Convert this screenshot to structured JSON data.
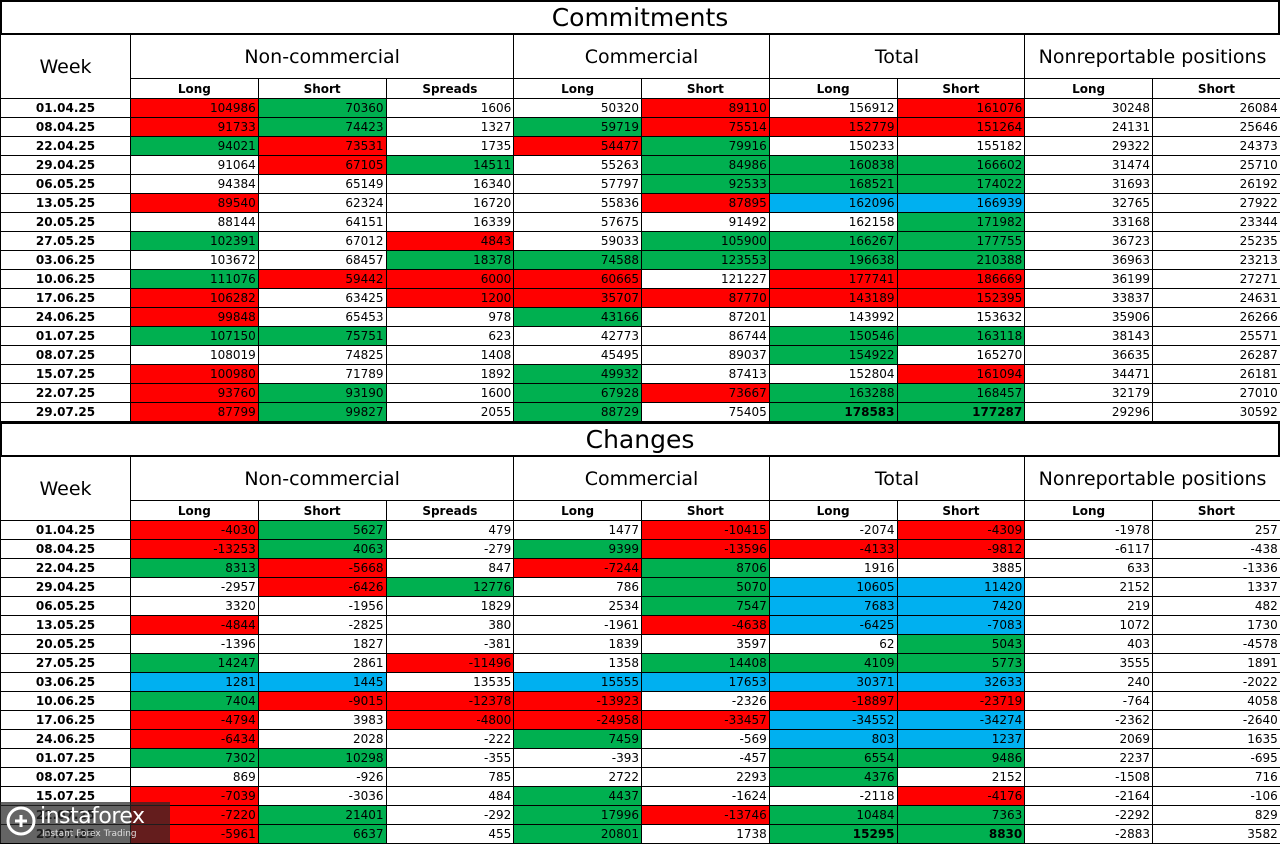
{
  "colors": {
    "red": "#ff0000",
    "green": "#00b050",
    "blue": "#00b0f0"
  },
  "headers": {
    "week": "Week",
    "groups": [
      "Non-commercial",
      "Commercial",
      "Total",
      "Nonreportable positions"
    ],
    "sub": [
      "Long",
      "Short",
      "Spreads",
      "Long",
      "Short",
      "Long",
      "Short",
      "Long",
      "Short"
    ]
  },
  "commitments": {
    "title": "Commitments",
    "rows": [
      {
        "week": "01.04.25",
        "v": [
          "104986",
          "70360",
          "1606",
          "50320",
          "89110",
          "156912",
          "161076",
          "30248",
          "26084"
        ],
        "c": [
          "r",
          "g",
          "",
          "",
          "r",
          "",
          "r",
          "",
          ""
        ]
      },
      {
        "week": "08.04.25",
        "v": [
          "91733",
          "74423",
          "1327",
          "59719",
          "75514",
          "152779",
          "151264",
          "24131",
          "25646"
        ],
        "c": [
          "r",
          "g",
          "",
          "g",
          "r",
          "r",
          "r",
          "",
          ""
        ]
      },
      {
        "week": "22.04.25",
        "v": [
          "94021",
          "73531",
          "1735",
          "54477",
          "79916",
          "150233",
          "155182",
          "29322",
          "24373"
        ],
        "c": [
          "g",
          "r",
          "",
          "r",
          "g",
          "",
          "",
          "",
          ""
        ]
      },
      {
        "week": "29.04.25",
        "v": [
          "91064",
          "67105",
          "14511",
          "55263",
          "84986",
          "160838",
          "166602",
          "31474",
          "25710"
        ],
        "c": [
          "",
          "r",
          "g",
          "",
          "g",
          "g",
          "g",
          "",
          ""
        ]
      },
      {
        "week": "06.05.25",
        "v": [
          "94384",
          "65149",
          "16340",
          "57797",
          "92533",
          "168521",
          "174022",
          "31693",
          "26192"
        ],
        "c": [
          "",
          "",
          "",
          "",
          "g",
          "g",
          "g",
          "",
          ""
        ]
      },
      {
        "week": "13.05.25",
        "v": [
          "89540",
          "62324",
          "16720",
          "55836",
          "87895",
          "162096",
          "166939",
          "32765",
          "27922"
        ],
        "c": [
          "r",
          "",
          "",
          "",
          "r",
          "b",
          "b",
          "",
          ""
        ]
      },
      {
        "week": "20.05.25",
        "v": [
          "88144",
          "64151",
          "16339",
          "57675",
          "91492",
          "162158",
          "171982",
          "33168",
          "23344"
        ],
        "c": [
          "",
          "",
          "",
          "",
          "",
          "",
          "g",
          "",
          ""
        ]
      },
      {
        "week": "27.05.25",
        "v": [
          "102391",
          "67012",
          "4843",
          "59033",
          "105900",
          "166267",
          "177755",
          "36723",
          "25235"
        ],
        "c": [
          "g",
          "",
          "r",
          "",
          "g",
          "g",
          "g",
          "",
          ""
        ]
      },
      {
        "week": "03.06.25",
        "v": [
          "103672",
          "68457",
          "18378",
          "74588",
          "123553",
          "196638",
          "210388",
          "36963",
          "23213"
        ],
        "c": [
          "",
          "",
          "g",
          "g",
          "g",
          "g",
          "g",
          "",
          ""
        ]
      },
      {
        "week": "10.06.25",
        "v": [
          "111076",
          "59442",
          "6000",
          "60665",
          "121227",
          "177741",
          "186669",
          "36199",
          "27271"
        ],
        "c": [
          "g",
          "r",
          "r",
          "r",
          "",
          "r",
          "r",
          "",
          ""
        ]
      },
      {
        "week": "17.06.25",
        "v": [
          "106282",
          "63425",
          "1200",
          "35707",
          "87770",
          "143189",
          "152395",
          "33837",
          "24631"
        ],
        "c": [
          "r",
          "",
          "r",
          "r",
          "r",
          "r",
          "r",
          "",
          ""
        ]
      },
      {
        "week": "24.06.25",
        "v": [
          "99848",
          "65453",
          "978",
          "43166",
          "87201",
          "143992",
          "153632",
          "35906",
          "26266"
        ],
        "c": [
          "r",
          "",
          "",
          "g",
          "",
          "",
          "",
          "",
          ""
        ]
      },
      {
        "week": "01.07.25",
        "v": [
          "107150",
          "75751",
          "623",
          "42773",
          "86744",
          "150546",
          "163118",
          "38143",
          "25571"
        ],
        "c": [
          "g",
          "g",
          "",
          "",
          "",
          "g",
          "g",
          "",
          ""
        ]
      },
      {
        "week": "08.07.25",
        "v": [
          "108019",
          "74825",
          "1408",
          "45495",
          "89037",
          "154922",
          "165270",
          "36635",
          "26287"
        ],
        "c": [
          "",
          "",
          "",
          "",
          "",
          "g",
          "",
          "",
          ""
        ]
      },
      {
        "week": "15.07.25",
        "v": [
          "100980",
          "71789",
          "1892",
          "49932",
          "87413",
          "152804",
          "161094",
          "34471",
          "26181"
        ],
        "c": [
          "r",
          "",
          "",
          "g",
          "",
          "",
          "r",
          "",
          ""
        ]
      },
      {
        "week": "22.07.25",
        "v": [
          "93760",
          "93190",
          "1600",
          "67928",
          "73667",
          "163288",
          "168457",
          "32179",
          "27010"
        ],
        "c": [
          "r",
          "g",
          "",
          "g",
          "r",
          "g",
          "g",
          "",
          ""
        ]
      },
      {
        "week": "29.07.25",
        "v": [
          "87799",
          "99827",
          "2055",
          "88729",
          "75405",
          "178583",
          "177287",
          "29296",
          "30592"
        ],
        "c": [
          "r",
          "g",
          "",
          "g",
          "",
          "g",
          "g",
          "",
          ""
        ],
        "bold": [
          5,
          6
        ]
      }
    ]
  },
  "changes": {
    "title": "Changes",
    "rows": [
      {
        "week": "01.04.25",
        "v": [
          "-4030",
          "5627",
          "479",
          "1477",
          "-10415",
          "-2074",
          "-4309",
          "-1978",
          "257"
        ],
        "c": [
          "r",
          "g",
          "",
          "",
          "r",
          "",
          "r",
          "",
          ""
        ]
      },
      {
        "week": "08.04.25",
        "v": [
          "-13253",
          "4063",
          "-279",
          "9399",
          "-13596",
          "-4133",
          "-9812",
          "-6117",
          "-438"
        ],
        "c": [
          "r",
          "g",
          "",
          "g",
          "r",
          "r",
          "r",
          "",
          ""
        ]
      },
      {
        "week": "22.04.25",
        "v": [
          "8313",
          "-5668",
          "847",
          "-7244",
          "8706",
          "1916",
          "3885",
          "633",
          "-1336"
        ],
        "c": [
          "g",
          "r",
          "",
          "r",
          "g",
          "",
          "",
          "",
          ""
        ]
      },
      {
        "week": "29.04.25",
        "v": [
          "-2957",
          "-6426",
          "12776",
          "786",
          "5070",
          "10605",
          "11420",
          "2152",
          "1337"
        ],
        "c": [
          "",
          "r",
          "g",
          "",
          "g",
          "b",
          "b",
          "",
          ""
        ]
      },
      {
        "week": "06.05.25",
        "v": [
          "3320",
          "-1956",
          "1829",
          "2534",
          "7547",
          "7683",
          "7420",
          "219",
          "482"
        ],
        "c": [
          "",
          "",
          "",
          "",
          "g",
          "b",
          "b",
          "",
          ""
        ]
      },
      {
        "week": "13.05.25",
        "v": [
          "-4844",
          "-2825",
          "380",
          "-1961",
          "-4638",
          "-6425",
          "-7083",
          "1072",
          "1730"
        ],
        "c": [
          "r",
          "",
          "",
          "",
          "r",
          "b",
          "b",
          "",
          ""
        ]
      },
      {
        "week": "20.05.25",
        "v": [
          "-1396",
          "1827",
          "-381",
          "1839",
          "3597",
          "62",
          "5043",
          "403",
          "-4578"
        ],
        "c": [
          "",
          "",
          "",
          "",
          "",
          "",
          "g",
          "",
          ""
        ]
      },
      {
        "week": "27.05.25",
        "v": [
          "14247",
          "2861",
          "-11496",
          "1358",
          "14408",
          "4109",
          "5773",
          "3555",
          "1891"
        ],
        "c": [
          "g",
          "",
          "r",
          "",
          "g",
          "g",
          "g",
          "",
          ""
        ]
      },
      {
        "week": "03.06.25",
        "v": [
          "1281",
          "1445",
          "13535",
          "15555",
          "17653",
          "30371",
          "32633",
          "240",
          "-2022"
        ],
        "c": [
          "b",
          "b",
          "",
          "b",
          "b",
          "b",
          "b",
          "",
          ""
        ]
      },
      {
        "week": "10.06.25",
        "v": [
          "7404",
          "-9015",
          "-12378",
          "-13923",
          "-2326",
          "-18897",
          "-23719",
          "-764",
          "4058"
        ],
        "c": [
          "g",
          "r",
          "r",
          "r",
          "",
          "r",
          "r",
          "",
          ""
        ]
      },
      {
        "week": "17.06.25",
        "v": [
          "-4794",
          "3983",
          "-4800",
          "-24958",
          "-33457",
          "-34552",
          "-34274",
          "-2362",
          "-2640"
        ],
        "c": [
          "r",
          "",
          "r",
          "r",
          "r",
          "b",
          "b",
          "",
          ""
        ]
      },
      {
        "week": "24.06.25",
        "v": [
          "-6434",
          "2028",
          "-222",
          "7459",
          "-569",
          "803",
          "1237",
          "2069",
          "1635"
        ],
        "c": [
          "r",
          "",
          "",
          "g",
          "",
          "b",
          "b",
          "",
          ""
        ]
      },
      {
        "week": "01.07.25",
        "v": [
          "7302",
          "10298",
          "-355",
          "-393",
          "-457",
          "6554",
          "9486",
          "2237",
          "-695"
        ],
        "c": [
          "g",
          "g",
          "",
          "",
          "",
          "g",
          "g",
          "",
          ""
        ]
      },
      {
        "week": "08.07.25",
        "v": [
          "869",
          "-926",
          "785",
          "2722",
          "2293",
          "4376",
          "2152",
          "-1508",
          "716"
        ],
        "c": [
          "",
          "",
          "",
          "",
          "",
          "g",
          "",
          "",
          ""
        ]
      },
      {
        "week": "15.07.25",
        "v": [
          "-7039",
          "-3036",
          "484",
          "4437",
          "-1624",
          "-2118",
          "-4176",
          "-2164",
          "-106"
        ],
        "c": [
          "r",
          "",
          "",
          "g",
          "",
          "",
          "r",
          "",
          ""
        ]
      },
      {
        "week": "22.07.25",
        "v": [
          "-7220",
          "21401",
          "-292",
          "17996",
          "-13746",
          "10484",
          "7363",
          "-2292",
          "829"
        ],
        "c": [
          "r",
          "g",
          "",
          "g",
          "r",
          "g",
          "g",
          "",
          ""
        ]
      },
      {
        "week": "29.07.25",
        "v": [
          "-5961",
          "6637",
          "455",
          "20801",
          "1738",
          "15295",
          "8830",
          "-2883",
          "3582"
        ],
        "c": [
          "r",
          "g",
          "",
          "g",
          "",
          "g",
          "g",
          "",
          ""
        ],
        "bold": [
          5,
          6
        ]
      }
    ]
  },
  "logo": {
    "name": "instaforex",
    "tagline": "Instant Forex Trading"
  }
}
